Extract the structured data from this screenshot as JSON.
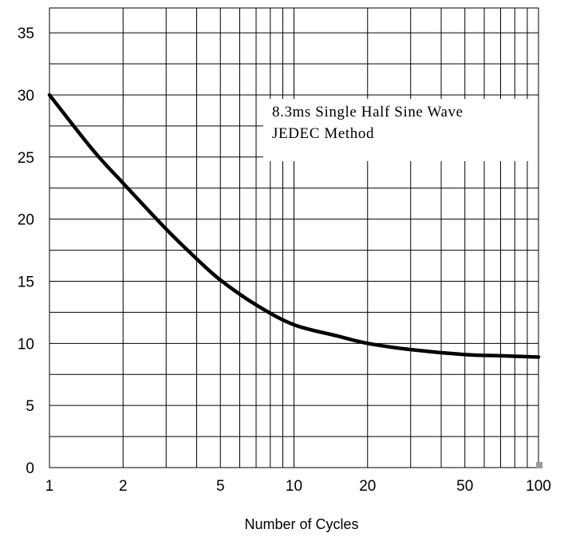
{
  "chart_data": {
    "type": "line",
    "title": "",
    "xlabel": "Number of Cycles",
    "ylabel": "",
    "x_scale": "log",
    "xlim": [
      1,
      100
    ],
    "ylim": [
      0,
      37
    ],
    "x_ticks": [
      1,
      2,
      5,
      10,
      20,
      50,
      100
    ],
    "x_tick_labels": [
      "1",
      "2",
      "5",
      "10",
      "20",
      "50",
      "100"
    ],
    "y_ticks": [
      0,
      5,
      10,
      15,
      20,
      25,
      30,
      35
    ],
    "y_tick_labels": [
      "0",
      "5",
      "10",
      "15",
      "20",
      "25",
      "30",
      "35"
    ],
    "grid": true,
    "legend": "none",
    "annotation_lines": [
      "8.3ms Single Half Sine Wave",
      "JEDEC Method"
    ],
    "annotation_position": "top-right",
    "colors": {
      "line": "#000000",
      "grid": "#000000",
      "background": "#ffffff"
    },
    "series": [
      {
        "x": [
          1,
          1.5,
          2,
          3,
          4,
          5,
          7,
          10,
          15,
          20,
          30,
          50,
          70,
          100
        ],
        "y": [
          30,
          25.6,
          22.9,
          19.2,
          16.8,
          15.1,
          13.1,
          11.5,
          10.6,
          10.0,
          9.5,
          9.1,
          9.0,
          8.9
        ]
      }
    ]
  }
}
